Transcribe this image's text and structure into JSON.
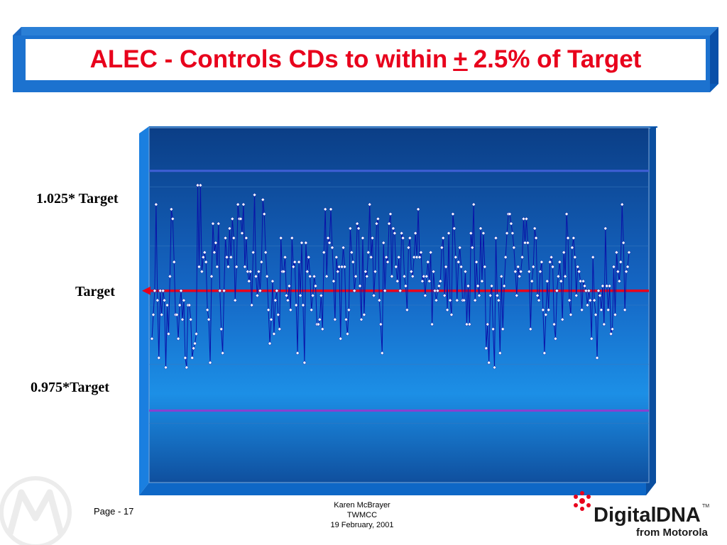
{
  "slide": {
    "title_before": "ALEC - Controls CDs to within",
    "title_symbol": "+",
    "title_after": "2.5% of Target",
    "title_color": "#e8001c"
  },
  "chart_labels": {
    "upper": "1.025* Target",
    "target": "Target",
    "lower": "0.975*Target"
  },
  "chart_data": {
    "type": "line",
    "title": "",
    "xlabel": "",
    "ylabel": "",
    "ylim": [
      0.96,
      1.034
    ],
    "reference_lines": [
      {
        "label": "1.025* Target",
        "value": 1.025,
        "color": "#3f5fd6"
      },
      {
        "label": "Target",
        "value": 1.0,
        "color": "#e8001c"
      },
      {
        "label": "0.975*Target",
        "value": 0.975,
        "color": "#8a3fd0"
      }
    ],
    "grid": true,
    "series": [
      {
        "color": "#0a12a8",
        "values": [
          0.99,
          0.995,
          1.0,
          1.018,
          0.998,
          0.986,
          1.0,
          0.995,
          1.0,
          0.998,
          0.984,
          0.997,
          0.991,
          1.003,
          1.017,
          1.015,
          1.006,
          0.995,
          0.995,
          0.99,
          0.997,
          1.0,
          0.994,
          0.998,
          0.986,
          0.984,
          0.997,
          0.997,
          0.994,
          0.986,
          0.988,
          0.989,
          0.991,
          1.022,
          1.005,
          1.022,
          1.004,
          1.007,
          1.008,
          1.006,
          0.996,
          0.994,
          0.985,
          1.003,
          1.014,
          1.008,
          1.01,
          1.005,
          1.014,
          1.0,
          0.992,
          0.987,
          1.0,
          1.011,
          1.007,
          1.005,
          1.013,
          1.007,
          1.015,
          1.011,
          0.998,
          1.005,
          1.018,
          1.015,
          1.015,
          1.012,
          1.018,
          1.005,
          1.011,
          1.004,
          1.002,
          1.004,
          0.997,
          1.008,
          1.02,
          1.003,
          0.999,
          1.004,
          1.0,
          1.006,
          1.019,
          1.016,
          1.008,
          1.003,
          0.996,
          0.989,
          0.994,
          1.002,
          0.991,
          0.998,
          1.0,
          0.995,
          0.992,
          1.011,
          1.004,
          1.004,
          1.007,
          0.999,
          0.998,
          1.001,
          0.996,
          1.011,
          1.005,
          1.006,
          0.997,
          0.987,
          1.006,
          0.999,
          1.01,
          0.997,
          0.985,
          1.01,
          1.004,
          1.007,
          1.003,
          0.996,
          0.999,
          1.003,
          1.001,
          0.993,
          0.993,
          0.994,
          0.999,
          0.992,
          1.008,
          1.017,
          1.003,
          1.011,
          1.01,
          1.017,
          1.009,
          1.002,
          0.994,
          1.007,
          1.004,
          1.005,
          0.99,
          1.005,
          1.009,
          1.005,
          0.994,
          0.991,
          0.996,
          1.013,
          1.008,
          1.006,
          1.0,
          1.003,
          1.014,
          1.013,
          1.001,
          0.994,
          1.011,
          0.995,
          1.004,
          1.003,
          1.008,
          1.018,
          1.007,
          1.011,
          0.999,
          1.004,
          1.014,
          1.015,
          0.998,
          0.993,
          0.987,
          1.01,
          1.0,
          1.007,
          1.006,
          1.014,
          1.016,
          1.003,
          1.013,
          1.012,
          1.005,
          1.002,
          1.007,
          1.0,
          1.012,
          1.011,
          1.003,
          1.001,
          0.996,
          1.009,
          1.011,
          1.004,
          1.003,
          1.007,
          1.012,
          1.007,
          1.017,
          1.007,
          1.008,
          1.002,
          1.003,
          0.999,
          1.003,
          1.006,
          1.002,
          1.008,
          0.993,
          1.004,
          1.0,
          0.998,
          1.0,
          1.001,
          1.002,
          1.009,
          1.011,
          0.999,
          1.005,
          0.996,
          1.012,
          0.998,
          0.995,
          1.016,
          1.013,
          1.007,
          0.998,
          1.006,
          1.009,
          1.005,
          0.998,
          0.998,
          1.004,
          0.993,
          1.001,
          0.993,
          1.012,
          1.009,
          1.018,
          0.998,
          1.006,
          1.001,
          0.999,
          1.013,
          1.002,
          1.012,
          1.005,
          0.988,
          0.993,
          0.985,
          0.999,
          1.001,
          0.992,
          0.984,
          1.011,
          0.999,
          0.998,
          0.987,
          1.003,
          0.992,
          1.001,
          1.007,
          1.012,
          1.016,
          1.016,
          1.014,
          1.012,
          1.009,
          1.004,
          0.999,
          1.005,
          1.003,
          1.004,
          1.007,
          1.015,
          1.01,
          1.015,
          1.01,
          1.004,
          0.992,
          1.002,
          1.005,
          1.013,
          1.011,
          0.999,
          0.998,
          1.004,
          1.006,
          0.996,
          0.987,
          0.995,
          1.002,
          0.996,
          1.006,
          1.007,
          1.005,
          0.993,
          0.99,
          1.0,
          1.003,
          1.006,
          1.002,
          0.994,
          1.008,
          1.003,
          1.016,
          1.011,
          0.998,
          0.995,
          1.009,
          1.011,
          1.007,
          0.999,
          1.005,
          1.004,
          1.002,
          0.996,
          1.002,
          1.001,
          1.0,
          0.997,
          1.0,
          0.998,
          0.99,
          1.007,
          0.998,
          0.995,
          0.986,
          1.0,
          0.999,
          0.996,
          1.001,
          0.993,
          1.013,
          1.001,
          0.996,
          1.001,
          0.991,
          0.992,
          1.005,
          0.995,
          1.008,
          1.004,
          1.002,
          1.006,
          1.018,
          1.01,
          0.996,
          1.004,
          1.005,
          1.008
        ]
      }
    ]
  },
  "footer": {
    "page": "Page - 17",
    "author": "Karen McBrayer",
    "org": "TWMCC",
    "date": "19 February, 2001"
  },
  "brand": {
    "word1": "Digital",
    "word2": "DNA",
    "tm": "TM",
    "byline": "from Motorola",
    "star_color": "#e8001c"
  },
  "watermark_icon": "motorola-logo-icon"
}
